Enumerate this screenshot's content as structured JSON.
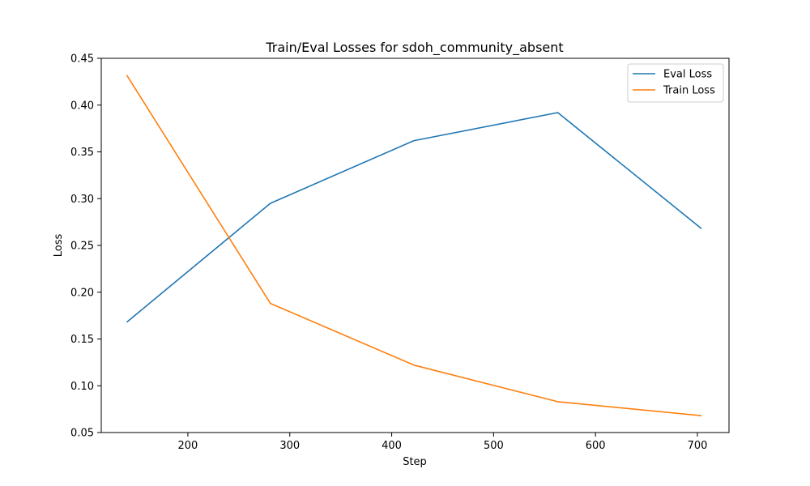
{
  "chart_data": {
    "type": "line",
    "title": "Train/Eval Losses for sdoh_community_absent",
    "xlabel": "Step",
    "ylabel": "Loss",
    "x": [
      140,
      281,
      422,
      563,
      704
    ],
    "xlim": [
      115,
      731
    ],
    "ylim": [
      0.05,
      0.45
    ],
    "xticks": [
      200,
      300,
      400,
      500,
      600,
      700
    ],
    "yticks": [
      0.05,
      0.1,
      0.15,
      0.2,
      0.25,
      0.3,
      0.35,
      0.4,
      0.45
    ],
    "xtick_labels": [
      "200",
      "300",
      "400",
      "500",
      "600",
      "700"
    ],
    "ytick_labels": [
      "0.05",
      "0.10",
      "0.15",
      "0.20",
      "0.25",
      "0.30",
      "0.35",
      "0.40",
      "0.45"
    ],
    "grid": false,
    "legend_position": "top-right",
    "series": [
      {
        "name": "Eval Loss",
        "color": "#1f77b4",
        "values": [
          0.168,
          0.295,
          0.362,
          0.392,
          0.268
        ]
      },
      {
        "name": "Train Loss",
        "color": "#ff7f0e",
        "values": [
          0.432,
          0.188,
          0.122,
          0.083,
          0.068
        ]
      }
    ]
  }
}
